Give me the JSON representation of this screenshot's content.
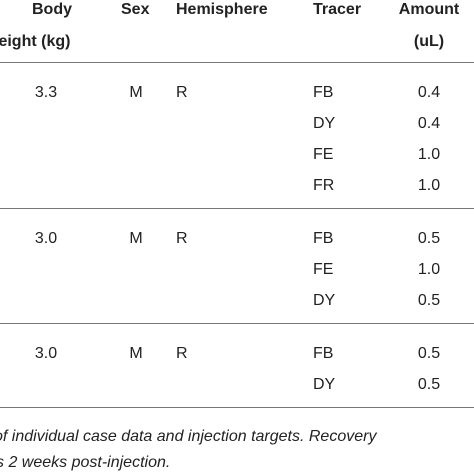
{
  "table": {
    "header": {
      "weight": [
        "Body",
        "weight (kg)"
      ],
      "sex": "Sex",
      "hemisphere": "Hemisphere",
      "tracer": "Tracer",
      "amount": [
        "Amount",
        "(uL)"
      ]
    },
    "groups": [
      {
        "weight": "3.3",
        "sex": "M",
        "hemisphere": "R",
        "injections": [
          {
            "tracer": "FB",
            "amount": "0.4"
          },
          {
            "tracer": "DY",
            "amount": "0.4"
          },
          {
            "tracer": "FE",
            "amount": "1.0"
          },
          {
            "tracer": "FR",
            "amount": "1.0"
          }
        ]
      },
      {
        "weight": "3.0",
        "sex": "M",
        "hemisphere": "R",
        "injections": [
          {
            "tracer": "FB",
            "amount": "0.5"
          },
          {
            "tracer": "FE",
            "amount": "1.0"
          },
          {
            "tracer": "DY",
            "amount": "0.5"
          }
        ]
      },
      {
        "weight": "3.0",
        "sex": "M",
        "hemisphere": "R",
        "injections": [
          {
            "tracer": "FB",
            "amount": "0.5"
          },
          {
            "tracer": "DY",
            "amount": "0.5"
          }
        ]
      }
    ],
    "caption": [
      "of individual case data and injection targets. Recovery",
      "s 2 weeks post-injection."
    ]
  }
}
